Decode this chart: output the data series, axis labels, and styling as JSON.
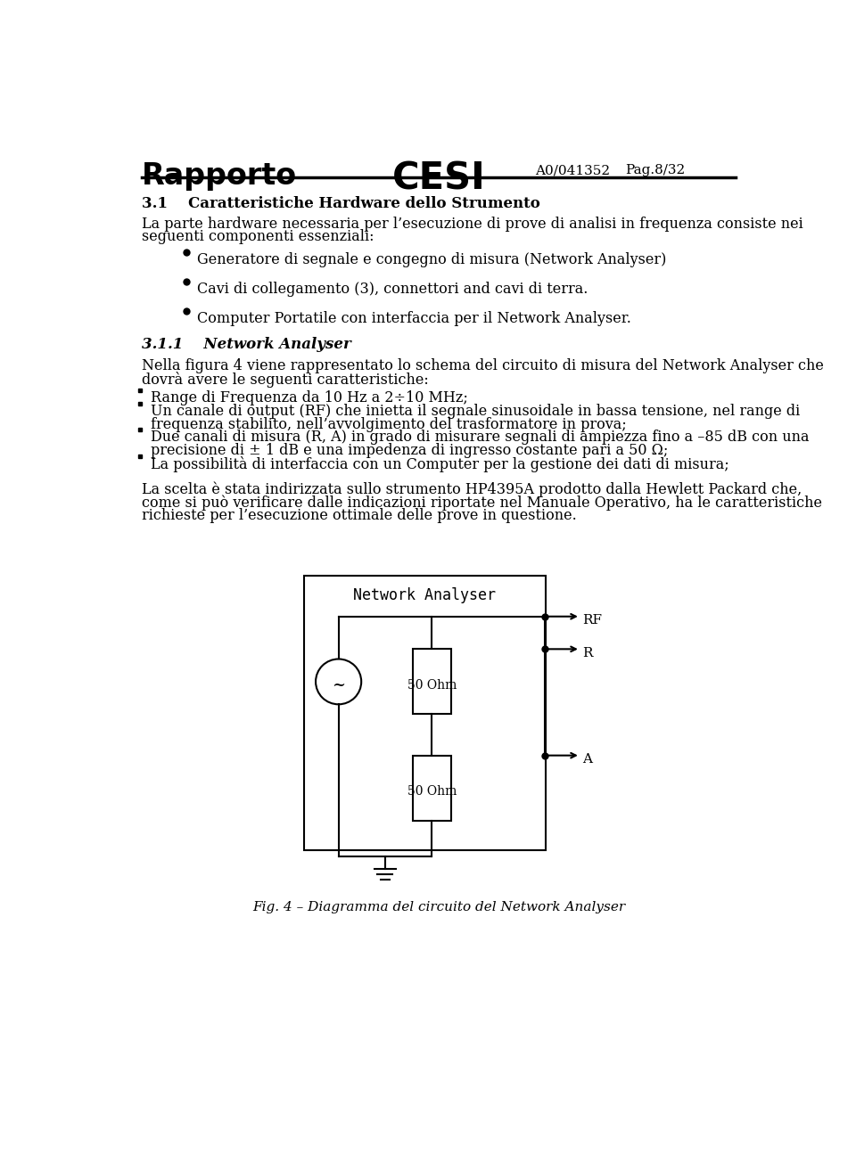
{
  "bg_color": "#ffffff",
  "header_left": "Rapporto",
  "header_center": "CESI",
  "header_right1": "A0/041352",
  "header_right2": "Pag.8/32",
  "section_title": "3.1    Caratteristiche Hardware dello Strumento",
  "para1_l1": "La parte hardware necessaria per l’esecuzione di prove di analisi in frequenza consiste nei",
  "para1_l2": "seguenti componenti essenziali:",
  "bullet1": "Generatore di segnale e congegno di misura (Network Analyser)",
  "bullet2": "Cavi di collegamento (3), connettori and cavi di terra.",
  "bullet3": "Computer Portatile con interfaccia per il Network Analyser.",
  "subsection": "3.1.1    Network Analyser",
  "para2_l1": "Nella figura 4 viene rappresentato lo schema del circuito di misura del Network Analyser che",
  "para2_l2": "dovrà avere le seguenti caratteristiche:",
  "d1": "Range di Frequenza da 10 Hz a 2÷10 MHz;",
  "d2l1": "Un canale di output (RF) che inietta il segnale sinusoidale in bassa tensione, nel range di",
  "d2l2": "frequenza stabilito, nell’avvolgimento del trasformatore in prova;",
  "d3l1": "Due canali di misura (R, A) in grado di misurare segnali di ampiezza fino a –85 dB con una",
  "d3l2": "precisione di ± 1 dB e una impedenza di ingresso costante pari a 50 Ω;",
  "d4": "La possibilità di interfaccia con un Computer per la gestione dei dati di misura;",
  "para3_l1": "La scelta è stata indirizzata sullo strumento HP4395A prodotto dalla Hewlett Packard che,",
  "para3_l2": "come si può verificare dalle indicazioni riportate nel Manuale Operativo, ha le caratteristiche",
  "para3_l3": "richieste per l’esecuzione ottimale delle prove in questione.",
  "fig_label": "Network Analyser",
  "label_RF": "RF",
  "label_R": "R",
  "label_A": "A",
  "label_50ohm1": "50 Ohm",
  "label_50ohm2": "50 Ohm",
  "fig_caption": "Fig. 4 – Diagramma del circuito del Network Analyser"
}
